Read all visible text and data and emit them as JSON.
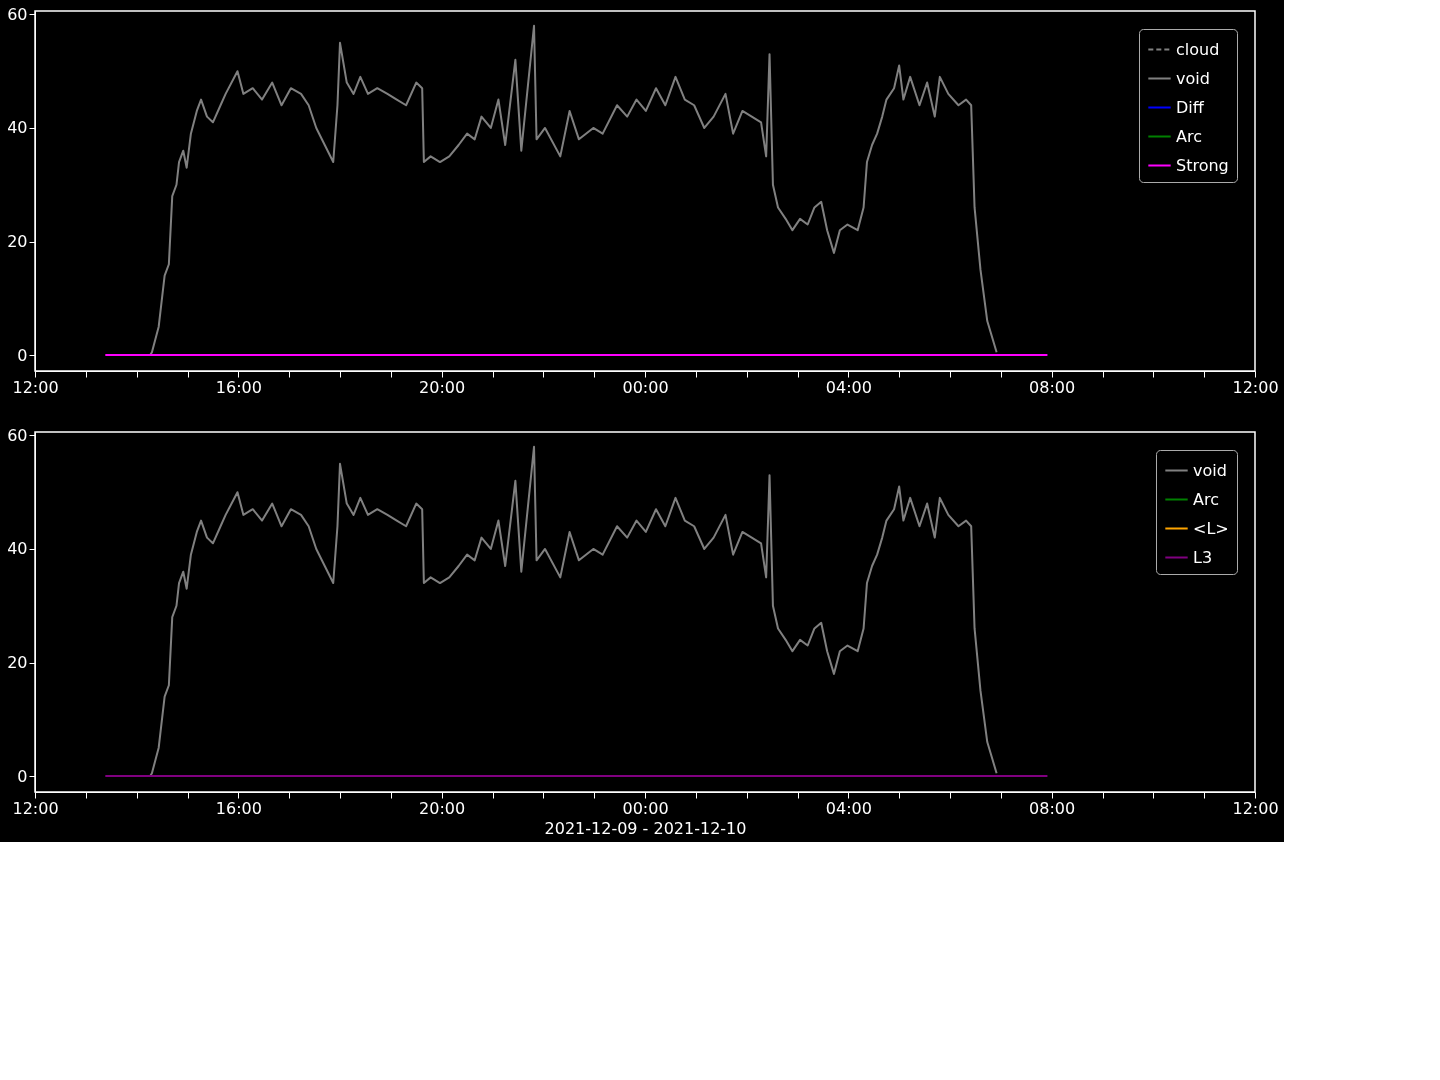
{
  "chart_data": [
    {
      "type": "line",
      "xlim": [
        "2021-12-09T12:00",
        "2021-12-10T12:00"
      ],
      "ylim": [
        -2.8,
        60.6
      ],
      "yticks": [
        0,
        20,
        40,
        60
      ],
      "xticks": [
        {
          "value": "2021-12-09T12:00",
          "label": "12:00"
        },
        {
          "value": "2021-12-09T13:00",
          "label": null
        },
        {
          "value": "2021-12-09T14:00",
          "label": null
        },
        {
          "value": "2021-12-09T15:00",
          "label": null
        },
        {
          "value": "2021-12-09T16:00",
          "label": "16:00"
        },
        {
          "value": "2021-12-09T17:00",
          "label": null
        },
        {
          "value": "2021-12-09T18:00",
          "label": null
        },
        {
          "value": "2021-12-09T19:00",
          "label": null
        },
        {
          "value": "2021-12-09T20:00",
          "label": "20:00"
        },
        {
          "value": "2021-12-09T21:00",
          "label": null
        },
        {
          "value": "2021-12-09T22:00",
          "label": null
        },
        {
          "value": "2021-12-09T23:00",
          "label": null
        },
        {
          "value": "2021-12-10T00:00",
          "label": "00:00"
        },
        {
          "value": "2021-12-10T01:00",
          "label": null
        },
        {
          "value": "2021-12-10T02:00",
          "label": null
        },
        {
          "value": "2021-12-10T03:00",
          "label": null
        },
        {
          "value": "2021-12-10T04:00",
          "label": "04:00"
        },
        {
          "value": "2021-12-10T05:00",
          "label": null
        },
        {
          "value": "2021-12-10T06:00",
          "label": null
        },
        {
          "value": "2021-12-10T07:00",
          "label": null
        },
        {
          "value": "2021-12-10T08:00",
          "label": "08:00"
        },
        {
          "value": "2021-12-10T09:00",
          "label": null
        },
        {
          "value": "2021-12-10T10:00",
          "label": null
        },
        {
          "value": "2021-12-10T11:00",
          "label": null
        },
        {
          "value": "2021-12-10T12:00",
          "label": "12:00"
        }
      ],
      "grid": false,
      "legend": "top right",
      "series": [
        {
          "name": "cloud",
          "color": "#808080",
          "line_style": "dashed"
        },
        {
          "name": "void",
          "color": "#808080",
          "x": [
            "2021-12-09T14:16",
            "2021-12-09T14:18",
            "2021-12-09T14:26",
            "2021-12-09T14:33",
            "2021-12-09T14:38",
            "2021-12-09T14:42",
            "2021-12-09T14:47",
            "2021-12-09T14:50",
            "2021-12-09T14:55",
            "2021-12-09T14:59",
            "2021-12-09T15:04",
            "2021-12-09T15:11",
            "2021-12-09T15:16",
            "2021-12-09T15:23",
            "2021-12-09T15:30",
            "2021-12-09T15:39",
            "2021-12-09T15:45",
            "2021-12-09T15:59",
            "2021-12-09T16:06",
            "2021-12-09T16:17",
            "2021-12-09T16:28",
            "2021-12-09T16:40",
            "2021-12-09T16:51",
            "2021-12-09T17:02",
            "2021-12-09T17:14",
            "2021-12-09T17:23",
            "2021-12-09T17:32",
            "2021-12-09T17:42",
            "2021-12-09T17:52",
            "2021-12-09T17:57",
            "2021-12-09T18:00",
            "2021-12-09T18:08",
            "2021-12-09T18:16",
            "2021-12-09T18:24",
            "2021-12-09T18:33",
            "2021-12-09T18:44",
            "2021-12-09T18:56",
            "2021-12-09T19:07",
            "2021-12-09T19:18",
            "2021-12-09T19:30",
            "2021-12-09T19:37",
            "2021-12-09T19:39",
            "2021-12-09T19:47",
            "2021-12-09T19:58",
            "2021-12-09T20:09",
            "2021-12-09T20:20",
            "2021-12-09T20:30",
            "2021-12-09T20:39",
            "2021-12-09T20:47",
            "2021-12-09T20:58",
            "2021-12-09T21:07",
            "2021-12-09T21:15",
            "2021-12-09T21:27",
            "2021-12-09T21:34",
            "2021-12-09T21:49",
            "2021-12-09T21:52",
            "2021-12-09T22:02",
            "2021-12-09T22:20",
            "2021-12-09T22:31",
            "2021-12-09T22:42",
            "2021-12-09T22:59",
            "2021-12-09T23:10",
            "2021-12-09T23:27",
            "2021-12-09T23:39",
            "2021-12-09T23:50",
            "2021-12-10T00:01",
            "2021-12-10T00:13",
            "2021-12-10T00:24",
            "2021-12-10T00:36",
            "2021-12-10T00:47",
            "2021-12-10T00:58",
            "2021-12-10T01:10",
            "2021-12-10T01:21",
            "2021-12-10T01:35",
            "2021-12-10T01:44",
            "2021-12-10T01:55",
            "2021-12-10T02:06",
            "2021-12-10T02:17",
            "2021-12-10T02:23",
            "2021-12-10T02:27",
            "2021-12-10T02:31",
            "2021-12-10T02:37",
            "2021-12-10T02:46",
            "2021-12-10T02:54",
            "2021-12-10T03:03",
            "2021-12-10T03:12",
            "2021-12-10T03:20",
            "2021-12-10T03:28",
            "2021-12-10T03:35",
            "2021-12-10T03:43",
            "2021-12-10T03:50",
            "2021-12-10T03:59",
            "2021-12-10T04:11",
            "2021-12-10T04:18",
            "2021-12-10T04:22",
            "2021-12-10T04:28",
            "2021-12-10T04:34",
            "2021-12-10T04:40",
            "2021-12-10T04:45",
            "2021-12-10T04:54",
            "2021-12-10T05:00",
            "2021-12-10T05:05",
            "2021-12-10T05:13",
            "2021-12-10T05:24",
            "2021-12-10T05:33",
            "2021-12-10T05:42",
            "2021-12-10T05:48",
            "2021-12-10T05:58",
            "2021-12-10T06:10",
            "2021-12-10T06:19",
            "2021-12-10T06:25",
            "2021-12-10T06:29",
            "2021-12-10T06:36",
            "2021-12-10T06:44",
            "2021-12-10T06:50",
            "2021-12-10T06:55"
          ],
          "values": [
            0,
            0.5,
            5,
            14,
            16,
            28,
            30,
            34,
            36,
            33,
            39,
            43,
            45,
            42,
            41,
            44,
            46,
            50,
            46,
            47,
            45,
            48,
            44,
            47,
            46,
            44,
            40,
            37,
            34,
            44,
            55,
            48,
            46,
            49,
            46,
            47,
            46,
            45,
            44,
            48,
            47,
            34,
            35,
            34,
            35,
            37,
            39,
            38,
            42,
            40,
            45,
            37,
            52,
            36,
            58,
            38,
            40,
            35,
            43,
            38,
            40,
            39,
            44,
            42,
            45,
            43,
            47,
            44,
            49,
            45,
            44,
            40,
            42,
            46,
            39,
            43,
            42,
            41,
            35,
            53,
            30,
            26,
            24,
            22,
            24,
            23,
            26,
            27,
            22,
            18,
            22,
            23,
            22,
            26,
            34,
            37,
            39,
            42,
            45,
            47,
            51,
            45,
            49,
            44,
            48,
            42,
            49,
            46,
            44,
            45,
            44,
            26,
            15,
            6,
            3,
            0.5
          ]
        },
        {
          "name": "Diff",
          "color": "#0000ff"
        },
        {
          "name": "Arc",
          "color": "#008000"
        },
        {
          "name": "Strong",
          "color": "#ff00ff",
          "x": [
            "2021-12-09T13:23",
            "2021-12-10T07:55"
          ],
          "values": [
            0,
            0
          ]
        }
      ]
    },
    {
      "type": "line",
      "xlabel": "2021-12-09 - 2021-12-10",
      "xlim": [
        "2021-12-09T12:00",
        "2021-12-10T12:00"
      ],
      "ylim": [
        -2.8,
        60.6
      ],
      "yticks": [
        0,
        20,
        40,
        60
      ],
      "xticks": [
        {
          "value": "2021-12-09T12:00",
          "label": "12:00"
        },
        {
          "value": "2021-12-09T13:00",
          "label": null
        },
        {
          "value": "2021-12-09T14:00",
          "label": null
        },
        {
          "value": "2021-12-09T15:00",
          "label": null
        },
        {
          "value": "2021-12-09T16:00",
          "label": "16:00"
        },
        {
          "value": "2021-12-09T17:00",
          "label": null
        },
        {
          "value": "2021-12-09T18:00",
          "label": null
        },
        {
          "value": "2021-12-09T19:00",
          "label": null
        },
        {
          "value": "2021-12-09T20:00",
          "label": "20:00"
        },
        {
          "value": "2021-12-09T21:00",
          "label": null
        },
        {
          "value": "2021-12-09T22:00",
          "label": null
        },
        {
          "value": "2021-12-09T23:00",
          "label": null
        },
        {
          "value": "2021-12-10T00:00",
          "label": "00:00"
        },
        {
          "value": "2021-12-10T01:00",
          "label": null
        },
        {
          "value": "2021-12-10T02:00",
          "label": null
        },
        {
          "value": "2021-12-10T03:00",
          "label": null
        },
        {
          "value": "2021-12-10T04:00",
          "label": "04:00"
        },
        {
          "value": "2021-12-10T05:00",
          "label": null
        },
        {
          "value": "2021-12-10T06:00",
          "label": null
        },
        {
          "value": "2021-12-10T07:00",
          "label": null
        },
        {
          "value": "2021-12-10T08:00",
          "label": "08:00"
        },
        {
          "value": "2021-12-10T09:00",
          "label": null
        },
        {
          "value": "2021-12-10T10:00",
          "label": null
        },
        {
          "value": "2021-12-10T11:00",
          "label": null
        },
        {
          "value": "2021-12-10T12:00",
          "label": "12:00"
        }
      ],
      "grid": false,
      "legend": "top right",
      "series": [
        {
          "name": "void",
          "color": "#808080",
          "x": [
            "2021-12-09T14:16",
            "2021-12-09T14:18",
            "2021-12-09T14:26",
            "2021-12-09T14:33",
            "2021-12-09T14:38",
            "2021-12-09T14:42",
            "2021-12-09T14:47",
            "2021-12-09T14:50",
            "2021-12-09T14:55",
            "2021-12-09T14:59",
            "2021-12-09T15:04",
            "2021-12-09T15:11",
            "2021-12-09T15:16",
            "2021-12-09T15:23",
            "2021-12-09T15:30",
            "2021-12-09T15:39",
            "2021-12-09T15:45",
            "2021-12-09T15:59",
            "2021-12-09T16:06",
            "2021-12-09T16:17",
            "2021-12-09T16:28",
            "2021-12-09T16:40",
            "2021-12-09T16:51",
            "2021-12-09T17:02",
            "2021-12-09T17:14",
            "2021-12-09T17:23",
            "2021-12-09T17:32",
            "2021-12-09T17:42",
            "2021-12-09T17:52",
            "2021-12-09T17:57",
            "2021-12-09T18:00",
            "2021-12-09T18:08",
            "2021-12-09T18:16",
            "2021-12-09T18:24",
            "2021-12-09T18:33",
            "2021-12-09T18:44",
            "2021-12-09T18:56",
            "2021-12-09T19:07",
            "2021-12-09T19:18",
            "2021-12-09T19:30",
            "2021-12-09T19:37",
            "2021-12-09T19:39",
            "2021-12-09T19:47",
            "2021-12-09T19:58",
            "2021-12-09T20:09",
            "2021-12-09T20:20",
            "2021-12-09T20:30",
            "2021-12-09T20:39",
            "2021-12-09T20:47",
            "2021-12-09T20:58",
            "2021-12-09T21:07",
            "2021-12-09T21:15",
            "2021-12-09T21:27",
            "2021-12-09T21:34",
            "2021-12-09T21:49",
            "2021-12-09T21:52",
            "2021-12-09T22:02",
            "2021-12-09T22:20",
            "2021-12-09T22:31",
            "2021-12-09T22:42",
            "2021-12-09T22:59",
            "2021-12-09T23:10",
            "2021-12-09T23:27",
            "2021-12-09T23:39",
            "2021-12-09T23:50",
            "2021-12-10T00:01",
            "2021-12-10T00:13",
            "2021-12-10T00:24",
            "2021-12-10T00:36",
            "2021-12-10T00:47",
            "2021-12-10T00:58",
            "2021-12-10T01:10",
            "2021-12-10T01:21",
            "2021-12-10T01:35",
            "2021-12-10T01:44",
            "2021-12-10T01:55",
            "2021-12-10T02:06",
            "2021-12-10T02:17",
            "2021-12-10T02:23",
            "2021-12-10T02:27",
            "2021-12-10T02:31",
            "2021-12-10T02:37",
            "2021-12-10T02:46",
            "2021-12-10T02:54",
            "2021-12-10T03:03",
            "2021-12-10T03:12",
            "2021-12-10T03:20",
            "2021-12-10T03:28",
            "2021-12-10T03:35",
            "2021-12-10T03:43",
            "2021-12-10T03:50",
            "2021-12-10T03:59",
            "2021-12-10T04:11",
            "2021-12-10T04:18",
            "2021-12-10T04:22",
            "2021-12-10T04:28",
            "2021-12-10T04:34",
            "2021-12-10T04:40",
            "2021-12-10T04:45",
            "2021-12-10T04:54",
            "2021-12-10T05:00",
            "2021-12-10T05:05",
            "2021-12-10T05:13",
            "2021-12-10T05:24",
            "2021-12-10T05:33",
            "2021-12-10T05:42",
            "2021-12-10T05:48",
            "2021-12-10T05:58",
            "2021-12-10T06:10",
            "2021-12-10T06:19",
            "2021-12-10T06:25",
            "2021-12-10T06:29",
            "2021-12-10T06:36",
            "2021-12-10T06:44",
            "2021-12-10T06:50",
            "2021-12-10T06:55"
          ],
          "values": [
            0,
            0.5,
            5,
            14,
            16,
            28,
            30,
            34,
            36,
            33,
            39,
            43,
            45,
            42,
            41,
            44,
            46,
            50,
            46,
            47,
            45,
            48,
            44,
            47,
            46,
            44,
            40,
            37,
            34,
            44,
            55,
            48,
            46,
            49,
            46,
            47,
            46,
            45,
            44,
            48,
            47,
            34,
            35,
            34,
            35,
            37,
            39,
            38,
            42,
            40,
            45,
            37,
            52,
            36,
            58,
            38,
            40,
            35,
            43,
            38,
            40,
            39,
            44,
            42,
            45,
            43,
            47,
            44,
            49,
            45,
            44,
            40,
            42,
            46,
            39,
            43,
            42,
            41,
            35,
            53,
            30,
            26,
            24,
            22,
            24,
            23,
            26,
            27,
            22,
            18,
            22,
            23,
            22,
            26,
            34,
            37,
            39,
            42,
            45,
            47,
            51,
            45,
            49,
            44,
            48,
            42,
            49,
            46,
            44,
            45,
            44,
            26,
            15,
            6,
            3,
            0.5
          ]
        },
        {
          "name": "Arc",
          "color": "#008000"
        },
        {
          "name": "<L>",
          "color": "#ffa500"
        },
        {
          "name": "L3",
          "color": "#800080",
          "x": [
            "2021-12-09T13:23",
            "2021-12-10T07:55"
          ],
          "values": [
            0,
            0
          ]
        }
      ]
    }
  ]
}
